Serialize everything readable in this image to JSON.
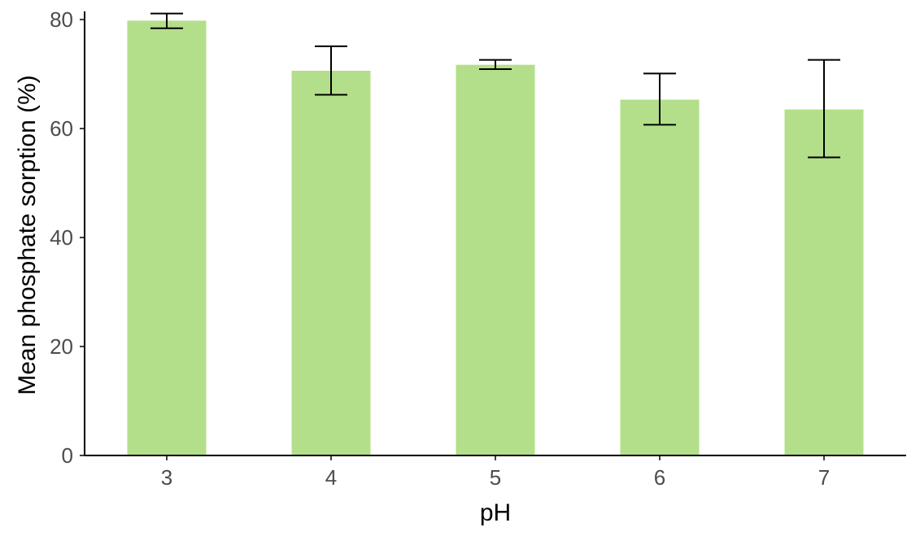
{
  "chart_data": {
    "type": "bar",
    "title": "",
    "xlabel": "pH",
    "ylabel": "Mean phosphate sorption (%)",
    "categories": [
      "3",
      "4",
      "5",
      "6",
      "7"
    ],
    "values": [
      79.8,
      70.6,
      71.7,
      65.3,
      63.5
    ],
    "error_low": [
      78.4,
      66.2,
      70.9,
      60.7,
      54.7
    ],
    "error_high": [
      81.1,
      75.1,
      72.6,
      70.1,
      72.6
    ],
    "ylim": [
      0,
      81.5
    ],
    "yticks": [
      "0",
      "20",
      "40",
      "60",
      "80"
    ],
    "grid": false,
    "legend": "none",
    "colors": {
      "bar": "#b3df8a",
      "error_bar": "#000000",
      "axis": "#000000",
      "tick_text": "#4d4d4d"
    }
  }
}
